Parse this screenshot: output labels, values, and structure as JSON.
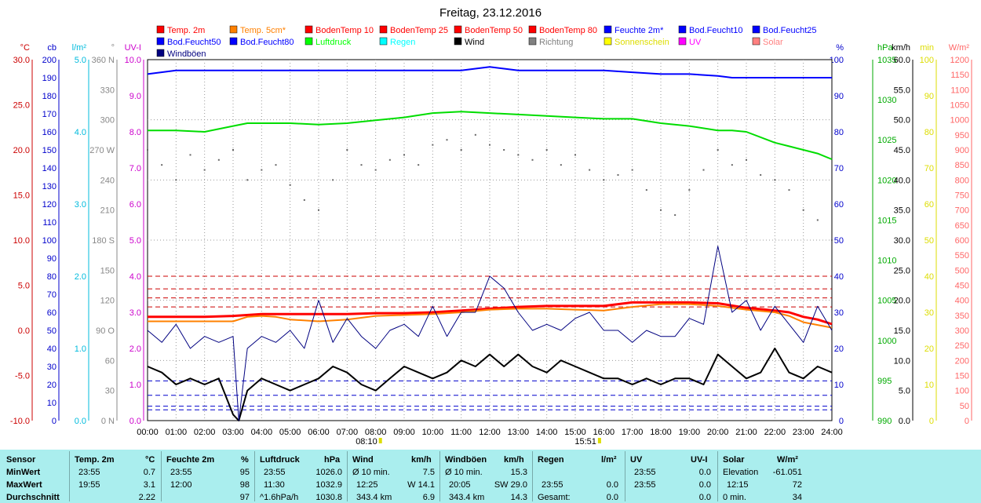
{
  "chart_data": {
    "type": "line",
    "title": "Freitag, 23.12.2016",
    "x_ticks": [
      "00:00",
      "01:00",
      "02:00",
      "03:00",
      "04:00",
      "05:00",
      "06:00",
      "07:00",
      "08:00",
      "09:00",
      "10:00",
      "11:00",
      "12:00",
      "13:00",
      "14:00",
      "15:00",
      "16:00",
      "17:00",
      "18:00",
      "19:00",
      "20:00",
      "21:00",
      "22:00",
      "23:00",
      "24:00"
    ],
    "sunrise": "08:10",
    "sunset": "15:51",
    "legend": [
      {
        "name": "Temp. 2m",
        "color": "#ff0000"
      },
      {
        "name": "Temp. 5cm*",
        "color": "#ff8000"
      },
      {
        "name": "BodenTemp 10",
        "color": "#ff0000"
      },
      {
        "name": "BodenTemp 25",
        "color": "#ff0000"
      },
      {
        "name": "BodenTemp 50",
        "color": "#ff0000"
      },
      {
        "name": "BodenTemp 80",
        "color": "#ff0000"
      },
      {
        "name": "Feuchte 2m*",
        "color": "#0000ff"
      },
      {
        "name": "Bod.Feucht10",
        "color": "#0000ff"
      },
      {
        "name": "Bod.Feucht25",
        "color": "#0000ff"
      },
      {
        "name": "Bod.Feucht50",
        "color": "#0000ff"
      },
      {
        "name": "Bod.Feucht80",
        "color": "#0000ff"
      },
      {
        "name": "Luftdruck",
        "color": "#00ff00"
      },
      {
        "name": "Regen",
        "color": "#00ffff"
      },
      {
        "name": "Wind",
        "color": "#000000"
      },
      {
        "name": "Richtung",
        "color": "#808080"
      },
      {
        "name": "Sonnenschein",
        "color": "#ffff00"
      },
      {
        "name": "UV",
        "color": "#ff00ff"
      },
      {
        "name": "Solar",
        "color": "#ff8080"
      },
      {
        "name": "Windböen",
        "color": "#000080"
      }
    ],
    "axes": [
      {
        "unit": "°C",
        "color": "#cc0000",
        "ticks": [
          "30.0",
          "25.0",
          "20.0",
          "15.0",
          "10.0",
          "5.0",
          "0.0",
          "-5.0",
          "-10.0"
        ]
      },
      {
        "unit": "cb",
        "color": "#0000cc",
        "ticks": [
          "200",
          "190",
          "180",
          "170",
          "160",
          "150",
          "140",
          "130",
          "120",
          "110",
          "100",
          "90",
          "80",
          "70",
          "60",
          "50",
          "40",
          "30",
          "20",
          "10",
          "0"
        ]
      },
      {
        "unit": "l/m²",
        "color": "#00bbdd",
        "ticks": [
          "5.0",
          "4.0",
          "3.0",
          "2.0",
          "1.0",
          "0.0"
        ]
      },
      {
        "unit": "°",
        "color": "#888888",
        "ticks": [
          "360 N",
          "330",
          "300",
          "270 W",
          "240",
          "210",
          "180 S",
          "150",
          "120",
          "90 O",
          "60",
          "30",
          "0 N"
        ]
      },
      {
        "unit": "UV-I",
        "color": "#cc00cc",
        "ticks": [
          "10.0",
          "9.0",
          "8.0",
          "7.0",
          "6.0",
          "5.0",
          "4.0",
          "3.0",
          "2.0",
          "1.0",
          "0.0"
        ]
      },
      {
        "unit": "%",
        "color": "#0000cc",
        "ticks": [
          "100",
          "90",
          "80",
          "70",
          "60",
          "50",
          "40",
          "30",
          "20",
          "10",
          "0"
        ]
      },
      {
        "unit": "hPa",
        "color": "#00aa00",
        "ticks": [
          "1035",
          "1030",
          "1025",
          "1020",
          "1015",
          "1010",
          "1005",
          "1000",
          "995",
          "990"
        ]
      },
      {
        "unit": "km/h",
        "color": "#000000",
        "ticks": [
          "60.0",
          "55.0",
          "50.0",
          "45.0",
          "40.0",
          "35.0",
          "30.0",
          "25.0",
          "20.0",
          "15.0",
          "10.0",
          "5.0",
          "0.0"
        ]
      },
      {
        "unit": "min",
        "color": "#dddd00",
        "ticks": [
          "100",
          "90",
          "80",
          "70",
          "60",
          "50",
          "40",
          "30",
          "20",
          "10",
          "0"
        ]
      },
      {
        "unit": "W/m²",
        "color": "#ff6666",
        "ticks": [
          "1200",
          "1150",
          "1100",
          "1050",
          "1000",
          "950",
          "900",
          "850",
          "800",
          "750",
          "700",
          "650",
          "600",
          "550",
          "500",
          "450",
          "400",
          "350",
          "300",
          "250",
          "200",
          "150",
          "100",
          "50",
          "0"
        ]
      }
    ],
    "soil_temp_levels_c": [
      2.6,
      3.6,
      4.6,
      6.0
    ],
    "soil_moisture_levels_pct": [
      11,
      7,
      4,
      3
    ],
    "series": [
      {
        "name": "Temp. 2m",
        "axis": "°C",
        "x": [
          0,
          1,
          2,
          3,
          4,
          5,
          6,
          7,
          8,
          9,
          10,
          11,
          12,
          13,
          14,
          15,
          16,
          17,
          18,
          19,
          20,
          21,
          22,
          22.5,
          23,
          23.5,
          24
        ],
        "y": [
          1.5,
          1.5,
          1.5,
          1.6,
          1.8,
          1.8,
          1.8,
          1.8,
          1.9,
          1.9,
          2.0,
          2.2,
          2.4,
          2.6,
          2.7,
          2.7,
          2.7,
          3.1,
          3.1,
          3.1,
          3.0,
          2.5,
          2.2,
          2.0,
          1.5,
          1.2,
          0.7
        ]
      },
      {
        "name": "Temp. 5cm*",
        "axis": "°C",
        "x": [
          0,
          1,
          2,
          3,
          3.5,
          4,
          4.5,
          5,
          6,
          7,
          8,
          9,
          10,
          11,
          12,
          13,
          14,
          15,
          16,
          17,
          18,
          19,
          20,
          21,
          22,
          22.5,
          23,
          23.5,
          24
        ],
        "y": [
          1.0,
          1.0,
          1.0,
          1.0,
          1.5,
          1.6,
          1.5,
          1.2,
          1.0,
          1.2,
          1.6,
          1.7,
          1.8,
          2.0,
          2.3,
          2.4,
          2.4,
          2.3,
          2.2,
          2.6,
          2.9,
          2.9,
          2.7,
          2.3,
          2.0,
          1.6,
          0.9,
          0.6,
          0.3
        ]
      },
      {
        "name": "Feuchte 2m*",
        "axis": "%",
        "x": [
          0,
          1,
          2,
          3,
          4,
          5,
          6,
          7,
          8,
          9,
          10,
          11,
          12,
          12.5,
          13,
          14,
          15,
          16,
          17,
          18,
          19,
          20,
          20.5,
          21,
          22,
          23,
          24
        ],
        "y": [
          96,
          97,
          97,
          97,
          97,
          97,
          97,
          97,
          97,
          97,
          97,
          97,
          98,
          97.5,
          97,
          97,
          97,
          97,
          96.5,
          96,
          96,
          95.5,
          95,
          95,
          95,
          95,
          95
        ]
      },
      {
        "name": "Luftdruck",
        "axis": "hPa",
        "x": [
          0,
          1,
          2,
          3,
          3.5,
          4,
          5,
          6,
          7,
          8,
          9,
          10,
          11,
          12,
          13,
          14,
          15,
          16,
          17,
          18,
          19,
          20,
          20.5,
          21,
          22,
          22.5,
          23,
          23.5,
          24
        ],
        "y": [
          1030.2,
          1030.2,
          1030.0,
          1030.8,
          1031.2,
          1031.2,
          1031.2,
          1031.0,
          1031.2,
          1031.6,
          1032.0,
          1032.6,
          1032.8,
          1032.6,
          1032.4,
          1032.2,
          1032.0,
          1031.8,
          1031.8,
          1031.2,
          1030.8,
          1030.2,
          1030.2,
          1030.0,
          1028.5,
          1028.0,
          1027.5,
          1027.0,
          1026.2
        ]
      },
      {
        "name": "Wind",
        "axis": "km/h",
        "x": [
          0,
          0.5,
          1,
          1.5,
          2,
          2.5,
          3,
          3.2,
          3.5,
          4,
          4.5,
          5,
          5.5,
          6,
          6.5,
          7,
          7.5,
          8,
          8.5,
          9,
          9.5,
          10,
          10.5,
          11,
          11.5,
          12,
          12.5,
          13,
          13.5,
          14,
          14.5,
          15,
          15.5,
          16,
          16.5,
          17,
          17.5,
          18,
          18.5,
          19,
          19.5,
          20,
          20.5,
          21,
          21.5,
          22,
          22.5,
          23,
          23.5,
          24
        ],
        "y": [
          9,
          8,
          6,
          7,
          6,
          7,
          1,
          0,
          5,
          7,
          6,
          5,
          6,
          7,
          9,
          8,
          6,
          5,
          7,
          9,
          8,
          7,
          8,
          10,
          9,
          11,
          9,
          11,
          9,
          8,
          10,
          9,
          8,
          7,
          7,
          6,
          7,
          6,
          7,
          7,
          6,
          11,
          9,
          7,
          8,
          12,
          8,
          7,
          9,
          8
        ]
      },
      {
        "name": "Windböen",
        "axis": "km/h",
        "x": [
          0,
          0.5,
          1,
          1.5,
          2,
          2.5,
          3,
          3.2,
          3.5,
          4,
          4.5,
          5,
          5.5,
          6,
          6.5,
          7,
          7.5,
          8,
          8.5,
          9,
          9.5,
          10,
          10.5,
          11,
          11.5,
          12,
          12.5,
          13,
          13.5,
          14,
          14.5,
          15,
          15.5,
          16,
          16.5,
          17,
          17.5,
          18,
          18.5,
          19,
          19.5,
          20,
          20.5,
          21,
          21.5,
          22,
          22.5,
          23,
          23.5,
          24
        ],
        "y": [
          15,
          13,
          16,
          12,
          14,
          13,
          14,
          0,
          12,
          14,
          13,
          15,
          12,
          20,
          13,
          17,
          14,
          12,
          15,
          16,
          14,
          19,
          14,
          18,
          18,
          24,
          22,
          18,
          15,
          16,
          15,
          17,
          18,
          15,
          15,
          13,
          15,
          14,
          14,
          17,
          16,
          29,
          18,
          20,
          15,
          19,
          16,
          13,
          19,
          15
        ]
      },
      {
        "name": "Richtung",
        "axis": "°",
        "x": [
          0,
          0.5,
          1,
          1.5,
          2,
          2.5,
          3,
          3.5,
          4,
          4.5,
          5,
          5.5,
          6,
          6.5,
          7,
          7.5,
          8,
          8.5,
          9,
          9.5,
          10,
          10.5,
          11,
          11.5,
          12,
          12.5,
          13,
          13.5,
          14,
          14.5,
          15,
          15.5,
          16,
          16.5,
          17,
          17.5,
          18,
          18.5,
          19,
          19.5,
          20,
          20.5,
          21,
          21.5,
          22,
          22.5,
          23,
          23.5,
          24
        ],
        "y": [
          270,
          255,
          240,
          265,
          250,
          260,
          270,
          240,
          250,
          255,
          235,
          220,
          210,
          240,
          270,
          255,
          250,
          260,
          265,
          255,
          275,
          280,
          270,
          285,
          275,
          270,
          265,
          260,
          270,
          255,
          265,
          250,
          240,
          245,
          250,
          230,
          210,
          205,
          230,
          250,
          270,
          255,
          260,
          245,
          240,
          230,
          210,
          200,
          180
        ]
      }
    ]
  },
  "stats": {
    "headers": {
      "sensor": "Sensor",
      "temp": "Temp. 2m",
      "temp_unit": "°C",
      "hum": "Feuchte 2m",
      "hum_unit": "%",
      "press": "Luftdruck",
      "press_unit": "hPa",
      "wind": "Wind",
      "wind_unit": "km/h",
      "gust": "Windböen",
      "gust_unit": "km/h",
      "rain": "Regen",
      "rain_unit": "l/m²",
      "uv": "UV",
      "uv_unit": "UV-I",
      "solar": "Solar",
      "solar_unit": "W/m²"
    },
    "rows": {
      "min": {
        "label": "MinWert",
        "temp_time": "23:55",
        "temp_val": "0.7",
        "hum_time": "23:55",
        "hum_val": "95",
        "press_time": "23:55",
        "press_val": "1026.0",
        "wind_time": "Ø 10 min.",
        "wind_val": "7.5",
        "gust_time": "Ø 10 min.",
        "gust_val": "15.3",
        "rain_time": "",
        "rain_val": "",
        "uv_time": "23:55",
        "uv_val": "0.0",
        "solar_time": "Elevation",
        "solar_val": "-61.051"
      },
      "max": {
        "label": "MaxWert",
        "temp_time": "19:55",
        "temp_val": "3.1",
        "hum_time": "12:00",
        "hum_val": "98",
        "press_time": "11:30",
        "press_val": "1032.9",
        "wind_time": "12:25",
        "wind_val": "W 14.1",
        "gust_time": "20:05",
        "gust_val": "SW 29.0",
        "rain_time": "23:55",
        "rain_val": "0.0",
        "uv_time": "23:55",
        "uv_val": "0.0",
        "solar_time": "12:15",
        "solar_val": "72"
      },
      "avg": {
        "label": "Durchschnitt",
        "temp_time": "",
        "temp_val": "2.22",
        "hum_time": "",
        "hum_val": "97",
        "press_time": "^1.6hPa/h",
        "press_val": "1030.8",
        "wind_time": "343.4 km",
        "wind_val": "6.9",
        "gust_time": "343.4 km",
        "gust_val": "14.3",
        "rain_time": "Gesamt:",
        "rain_val": "0.0",
        "uv_time": "",
        "uv_val": "0.0",
        "solar_time": "0 min.",
        "solar_val": "34"
      }
    }
  }
}
